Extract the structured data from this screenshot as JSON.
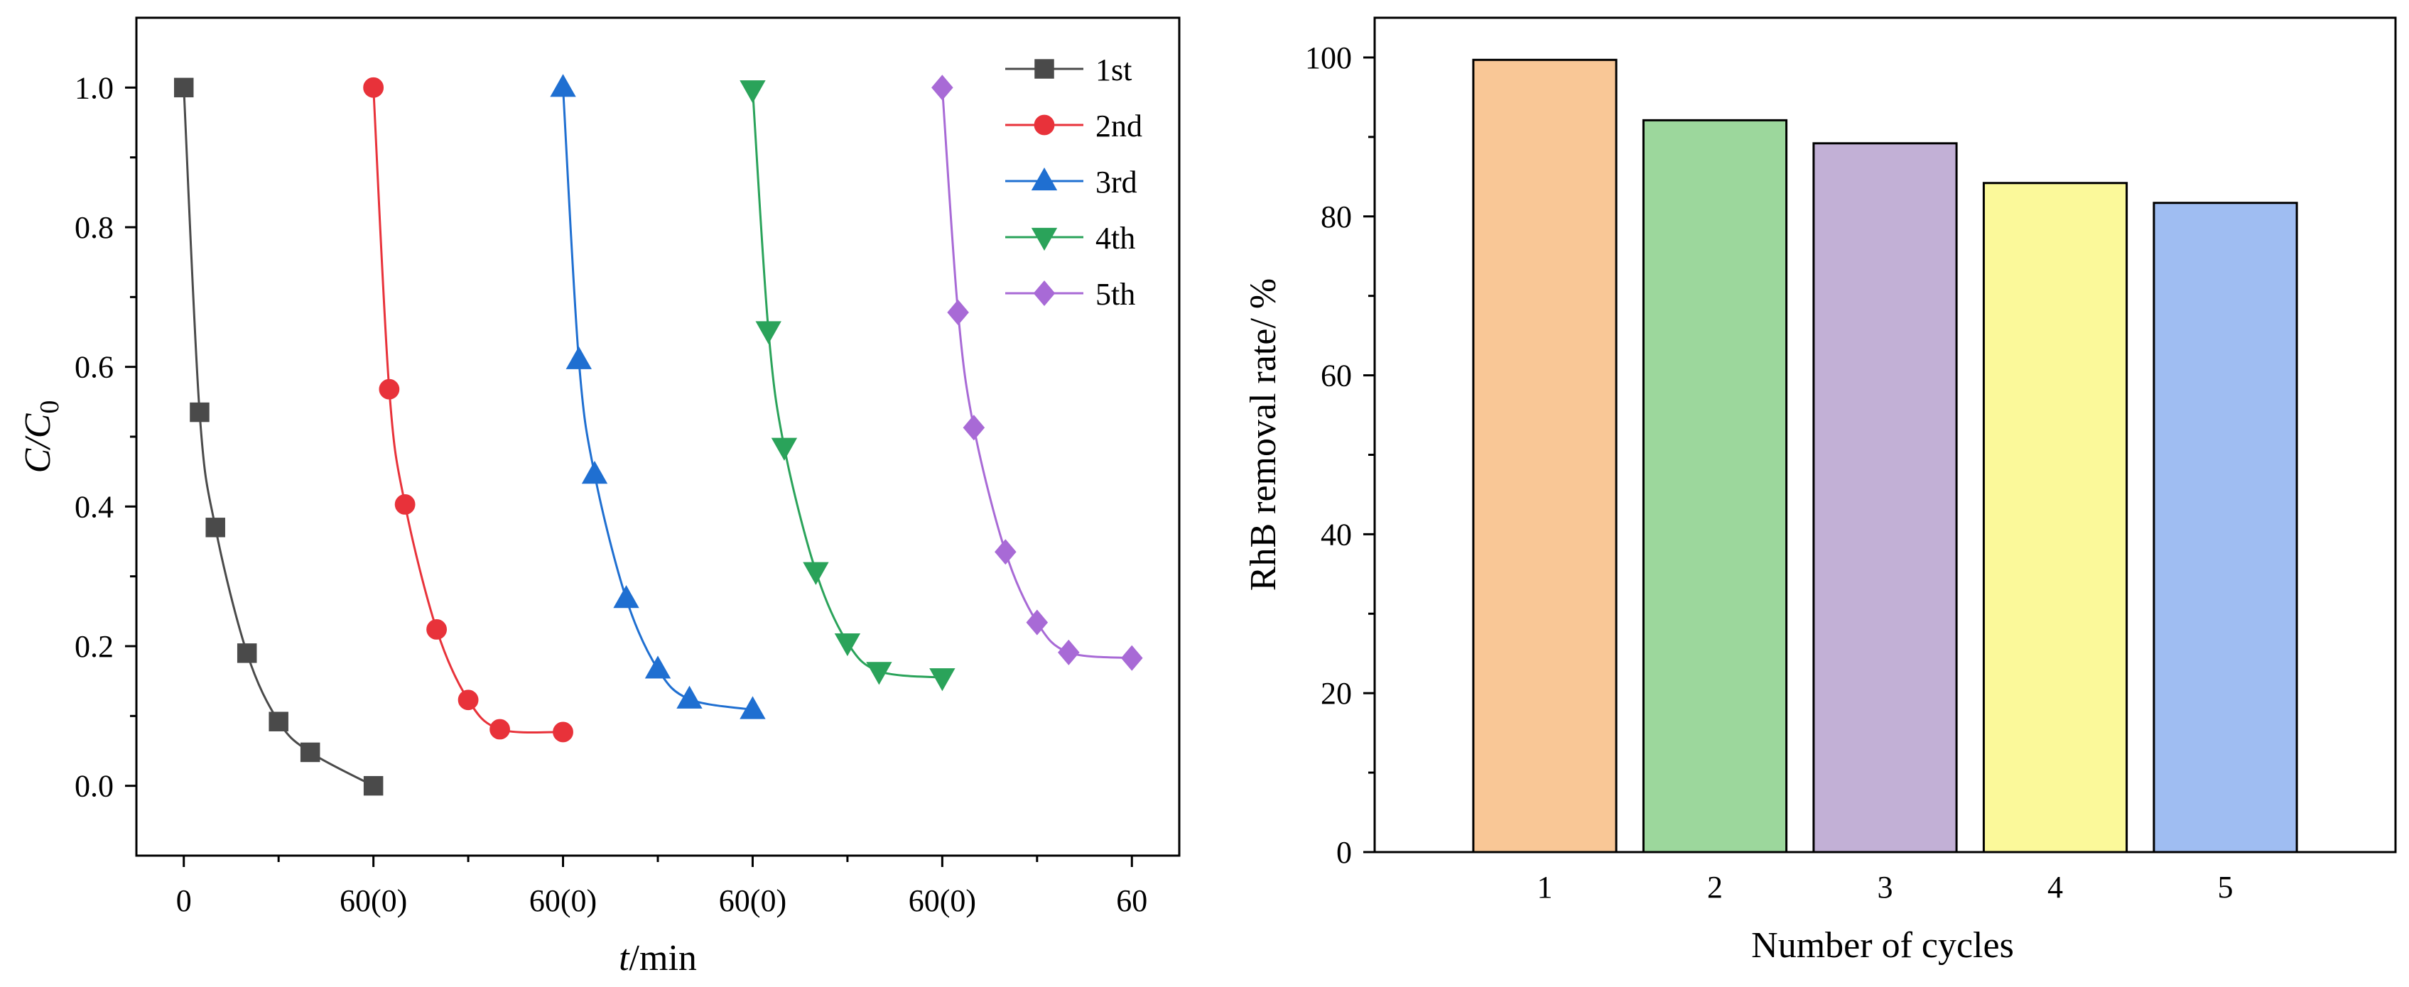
{
  "chart_data": [
    {
      "type": "line",
      "xlabel_italic": "t",
      "xlabel_rest": "/min",
      "ylabel_main": "C/C",
      "ylabel_sub": "0",
      "ylim": [
        -0.1,
        1.1
      ],
      "yticks": [
        "0.0",
        "0.2",
        "0.4",
        "0.6",
        "0.8",
        "1.0"
      ],
      "xtick_labels": [
        "0",
        "60(0)",
        "60(0)",
        "60(0)",
        "60(0)",
        "60"
      ],
      "xrange_min": [
        -15,
        285
      ],
      "legend_position": "top-right",
      "series": [
        {
          "name": "1st",
          "color": "#4a4a4a",
          "marker": "square",
          "x": [
            0,
            5,
            10,
            20,
            30,
            40,
            60
          ],
          "values": [
            1.0,
            0.535,
            0.37,
            0.19,
            0.092,
            0.048,
            0.0
          ]
        },
        {
          "name": "2nd",
          "color": "#e8323a",
          "marker": "circle",
          "x": [
            60,
            65,
            70,
            80,
            90,
            100,
            120
          ],
          "values": [
            1.0,
            0.568,
            0.403,
            0.224,
            0.123,
            0.081,
            0.077
          ]
        },
        {
          "name": "3rd",
          "color": "#1f6fd1",
          "marker": "triangle-up",
          "x": [
            120,
            125,
            130,
            140,
            150,
            160,
            180
          ],
          "values": [
            1.0,
            0.61,
            0.446,
            0.268,
            0.167,
            0.124,
            0.109
          ]
        },
        {
          "name": "4th",
          "color": "#2aa35a",
          "marker": "triangle-down",
          "x": [
            180,
            185,
            190,
            200,
            210,
            220,
            240
          ],
          "values": [
            0.997,
            0.652,
            0.485,
            0.307,
            0.205,
            0.164,
            0.155
          ]
        },
        {
          "name": "5th",
          "color": "#a86ad6",
          "marker": "diamond",
          "x": [
            240,
            245,
            250,
            260,
            270,
            280,
            300
          ],
          "values": [
            1.0,
            0.678,
            0.513,
            0.335,
            0.234,
            0.191,
            0.183
          ]
        }
      ]
    },
    {
      "type": "bar",
      "xlabel": "Number of cycles",
      "ylabel": "RhB removal rate/ %",
      "categories": [
        "1",
        "2",
        "3",
        "4",
        "5"
      ],
      "values": [
        99.7,
        92.1,
        89.2,
        84.2,
        81.7
      ],
      "colors": [
        "#f9c796",
        "#9cd79c",
        "#c2b0d6",
        "#fbf99a",
        "#9fbdf2"
      ],
      "ylim": [
        0,
        105
      ],
      "yticks": [
        "0",
        "20",
        "40",
        "60",
        "80",
        "100"
      ]
    }
  ]
}
